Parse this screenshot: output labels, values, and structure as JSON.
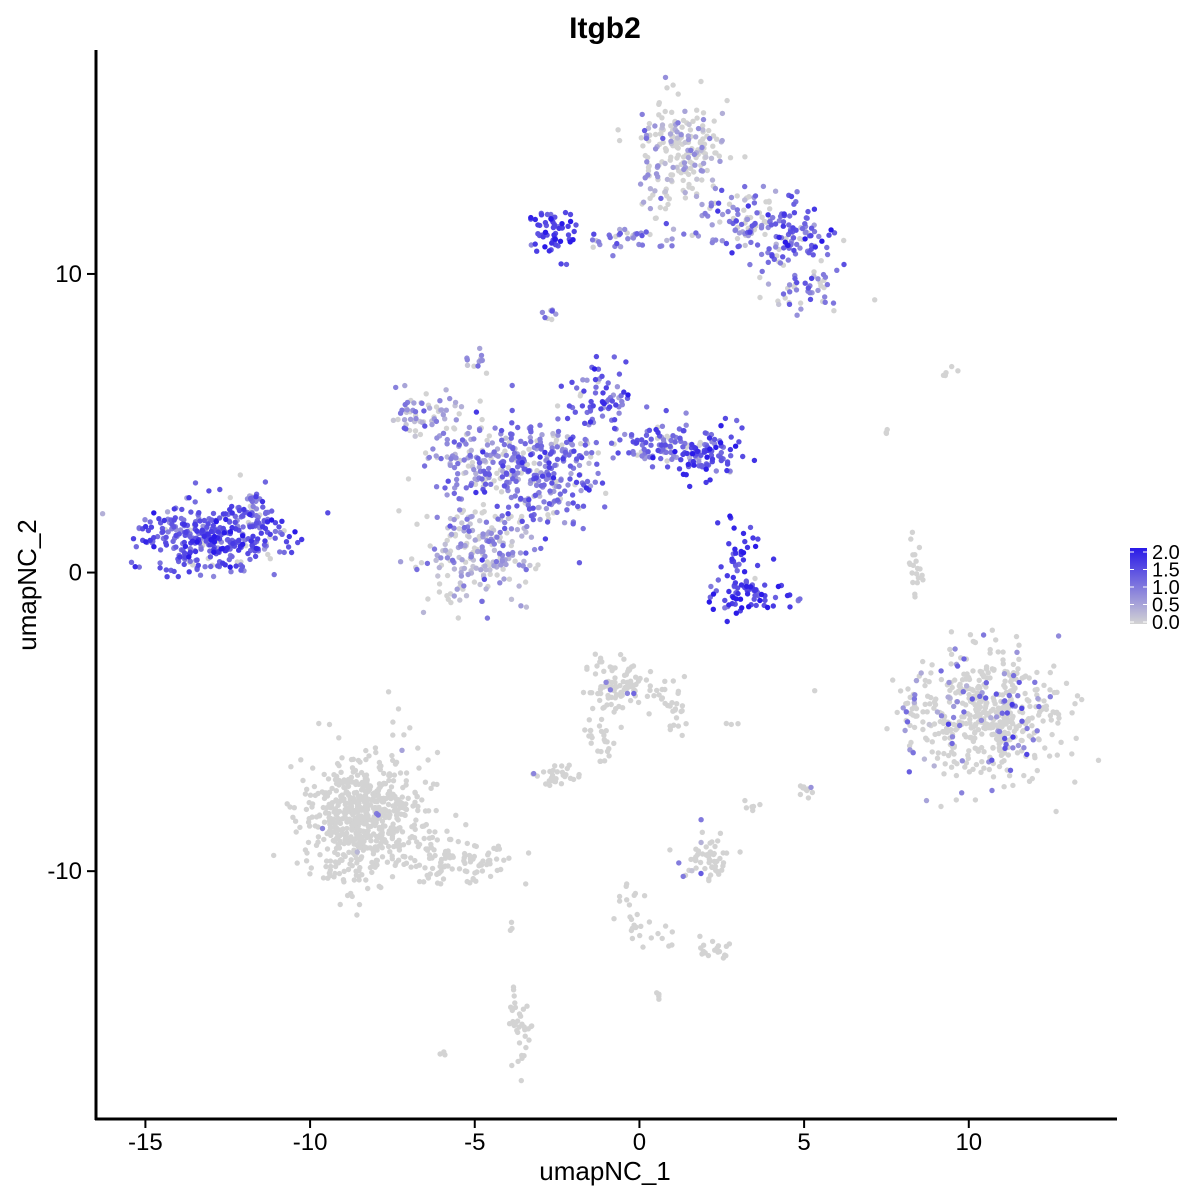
{
  "chart_data": {
    "type": "scatter",
    "title": "Itgb2",
    "xlabel": "umapNC_1",
    "ylabel": "umapNC_2",
    "xlim": [
      -16.5,
      14.5
    ],
    "ylim": [
      -18.3,
      17.5
    ],
    "x_ticks": [
      -15,
      -10,
      -5,
      0,
      5,
      10
    ],
    "x_tick_labels": [
      "-15",
      "-10",
      "-5",
      "0",
      "5",
      "10"
    ],
    "y_ticks": [
      -10,
      0,
      10
    ],
    "y_tick_labels": [
      "-10",
      "0",
      "10"
    ],
    "grid": false,
    "color_scale": {
      "low_color": "#d3d3d3",
      "high_color": "#2a1ae8",
      "min": 0,
      "max": 2.0,
      "legend_position": "right",
      "legend_ticks": [
        2.0,
        1.5,
        1.0,
        0.5,
        0.0
      ],
      "legend_tick_labels": [
        "2.0",
        "1.5",
        "1.0",
        "0.5",
        "0.0"
      ]
    },
    "clusters": [
      {
        "x": -13.0,
        "y": 1.2,
        "sx": 1.1,
        "sy": 0.55,
        "n": 380,
        "expr": 1.3,
        "frac": 0.92
      },
      {
        "x": -11.8,
        "y": 2.3,
        "sx": 0.35,
        "sy": 0.35,
        "n": 30,
        "expr": 1.1,
        "frac": 0.9
      },
      {
        "x": -6.6,
        "y": 5.2,
        "sx": 0.55,
        "sy": 0.45,
        "n": 60,
        "expr": 0.6,
        "frac": 0.7
      },
      {
        "x": -5.0,
        "y": 3.8,
        "sx": 0.8,
        "sy": 0.6,
        "n": 120,
        "expr": 0.9,
        "frac": 0.85
      },
      {
        "x": -3.5,
        "y": 3.0,
        "sx": 0.9,
        "sy": 1.1,
        "n": 230,
        "expr": 1.0,
        "frac": 0.85
      },
      {
        "x": -5.1,
        "y": 0.6,
        "sx": 0.9,
        "sy": 0.8,
        "n": 200,
        "expr": 0.5,
        "frac": 0.6
      },
      {
        "x": -1.2,
        "y": 5.8,
        "sx": 0.5,
        "sy": 0.6,
        "n": 70,
        "expr": 1.2,
        "frac": 0.9
      },
      {
        "x": 0.6,
        "y": 4.3,
        "sx": 0.8,
        "sy": 0.35,
        "n": 90,
        "expr": 1.1,
        "frac": 0.85
      },
      {
        "x": 2.0,
        "y": 4.0,
        "sx": 0.6,
        "sy": 0.4,
        "n": 90,
        "expr": 1.4,
        "frac": 0.95
      },
      {
        "x": -2.3,
        "y": 3.4,
        "sx": 0.6,
        "sy": 0.6,
        "n": 80,
        "expr": 1.1,
        "frac": 0.9
      },
      {
        "x": -4.9,
        "y": 7.2,
        "sx": 0.15,
        "sy": 0.15,
        "n": 12,
        "expr": 0.8,
        "frac": 0.8
      },
      {
        "x": 3.0,
        "y": 0.4,
        "sx": 0.3,
        "sy": 0.6,
        "n": 40,
        "expr": 1.5,
        "frac": 0.95
      },
      {
        "x": 3.3,
        "y": -0.8,
        "sx": 0.7,
        "sy": 0.25,
        "n": 60,
        "expr": 1.5,
        "frac": 0.95
      },
      {
        "x": -2.6,
        "y": 11.4,
        "sx": 0.35,
        "sy": 0.35,
        "n": 60,
        "expr": 1.6,
        "frac": 0.95
      },
      {
        "x": -0.5,
        "y": 11.2,
        "sx": 0.9,
        "sy": 0.2,
        "n": 40,
        "expr": 1.0,
        "frac": 0.8
      },
      {
        "x": 1.3,
        "y": 14.0,
        "sx": 0.7,
        "sy": 0.9,
        "n": 220,
        "expr": 0.6,
        "frac": 0.35
      },
      {
        "x": 3.2,
        "y": 11.8,
        "sx": 0.7,
        "sy": 0.5,
        "n": 100,
        "expr": 1.0,
        "frac": 0.7
      },
      {
        "x": 4.8,
        "y": 11.3,
        "sx": 0.6,
        "sy": 0.5,
        "n": 90,
        "expr": 1.2,
        "frac": 0.8
      },
      {
        "x": 5.0,
        "y": 9.5,
        "sx": 0.5,
        "sy": 0.4,
        "n": 50,
        "expr": 0.9,
        "frac": 0.7
      },
      {
        "x": -2.7,
        "y": 8.6,
        "sx": 0.1,
        "sy": 0.15,
        "n": 8,
        "expr": 1.0,
        "frac": 0.8
      },
      {
        "x": 10.6,
        "y": -4.8,
        "sx": 1.1,
        "sy": 1.1,
        "n": 520,
        "expr": 0.9,
        "frac": 0.14
      },
      {
        "x": 8.2,
        "y": -4.5,
        "sx": 0.15,
        "sy": 0.4,
        "n": 20,
        "expr": 0.8,
        "frac": 0.2
      },
      {
        "x": 8.4,
        "y": 0.2,
        "sx": 0.12,
        "sy": 0.5,
        "n": 20,
        "expr": 0,
        "frac": 0
      },
      {
        "x": -8.4,
        "y": -8.2,
        "sx": 0.9,
        "sy": 1.1,
        "n": 650,
        "expr": 0.6,
        "frac": 0.01
      },
      {
        "x": -5.6,
        "y": -9.7,
        "sx": 0.9,
        "sy": 0.35,
        "n": 100,
        "expr": 0,
        "frac": 0
      },
      {
        "x": -0.6,
        "y": -3.8,
        "sx": 0.5,
        "sy": 0.45,
        "n": 100,
        "expr": 0.8,
        "frac": 0.03
      },
      {
        "x": 1.0,
        "y": -4.7,
        "sx": 0.25,
        "sy": 0.5,
        "n": 30,
        "expr": 0,
        "frac": 0
      },
      {
        "x": 2.1,
        "y": -9.6,
        "sx": 0.4,
        "sy": 0.35,
        "n": 60,
        "expr": 0.8,
        "frac": 0.03
      },
      {
        "x": -2.4,
        "y": -6.8,
        "sx": 0.35,
        "sy": 0.2,
        "n": 30,
        "expr": 0.8,
        "frac": 0.05
      },
      {
        "x": -1.2,
        "y": -5.6,
        "sx": 0.25,
        "sy": 0.5,
        "n": 25,
        "expr": 0,
        "frac": 0
      },
      {
        "x": -3.6,
        "y": -15.3,
        "sx": 0.2,
        "sy": 0.6,
        "n": 35,
        "expr": 0,
        "frac": 0
      },
      {
        "x": 2.3,
        "y": -12.6,
        "sx": 0.25,
        "sy": 0.2,
        "n": 20,
        "expr": 0,
        "frac": 0
      },
      {
        "x": -0.3,
        "y": -11.2,
        "sx": 0.2,
        "sy": 0.6,
        "n": 20,
        "expr": 0,
        "frac": 0
      },
      {
        "x": 5.0,
        "y": -7.3,
        "sx": 0.12,
        "sy": 0.2,
        "n": 10,
        "expr": 0.8,
        "frac": 0.2
      },
      {
        "x": 2.8,
        "y": -5.1,
        "sx": 0.1,
        "sy": 0.05,
        "n": 3,
        "expr": 0,
        "frac": 0
      },
      {
        "x": 3.4,
        "y": -7.8,
        "sx": 0.15,
        "sy": 0.15,
        "n": 6,
        "expr": 0,
        "frac": 0
      },
      {
        "x": 0.7,
        "y": -12.2,
        "sx": 0.6,
        "sy": 0.2,
        "n": 10,
        "expr": 0,
        "frac": 0
      },
      {
        "x": 0.6,
        "y": -14.2,
        "sx": 0.1,
        "sy": 0.1,
        "n": 4,
        "expr": 0,
        "frac": 0
      },
      {
        "x": -6.0,
        "y": -16.2,
        "sx": 0.1,
        "sy": 0.1,
        "n": 3,
        "expr": 0,
        "frac": 0
      },
      {
        "x": -3.9,
        "y": -11.9,
        "sx": 0.05,
        "sy": 0.2,
        "n": 3,
        "expr": 0,
        "frac": 0
      },
      {
        "x": 9.5,
        "y": 6.7,
        "sx": 0.4,
        "sy": 0.2,
        "n": 5,
        "expr": 0,
        "frac": 0
      },
      {
        "x": 7.6,
        "y": 4.7,
        "sx": 0.1,
        "sy": 0.1,
        "n": 3,
        "expr": 0,
        "frac": 0
      }
    ]
  }
}
